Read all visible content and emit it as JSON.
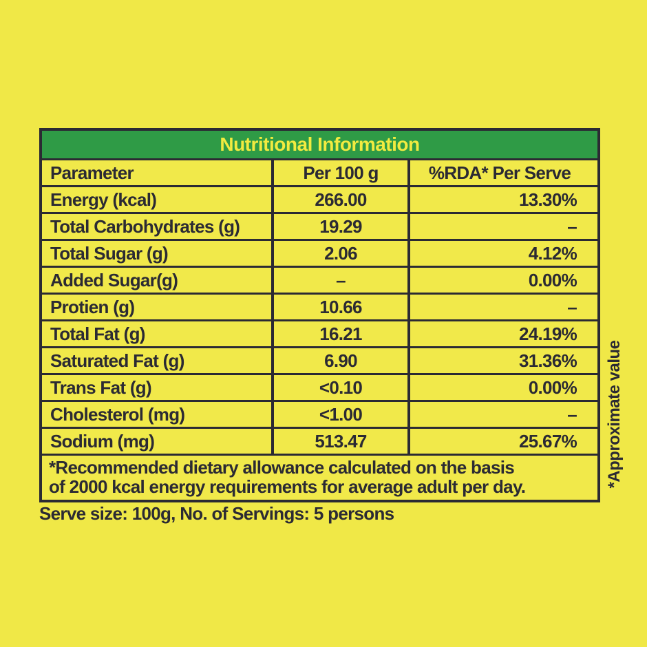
{
  "title": "Nutritional Information",
  "table": {
    "headers": [
      "Parameter",
      "Per 100 g",
      "%RDA* Per Serve"
    ],
    "rows": [
      {
        "param": "Energy (kcal)",
        "per100g": "266.00",
        "rda": "13.30%"
      },
      {
        "param": "Total Carbohydrates (g)",
        "per100g": "19.29",
        "rda": "–"
      },
      {
        "param": "Total Sugar (g)",
        "per100g": "2.06",
        "rda": "4.12%"
      },
      {
        "param": "Added Sugar(g)",
        "per100g": "–",
        "rda": "0.00%"
      },
      {
        "param": "Protien (g)",
        "per100g": "10.66",
        "rda": "–"
      },
      {
        "param": "Total Fat (g)",
        "per100g": "16.21",
        "rda": "24.19%"
      },
      {
        "param": "Saturated Fat (g)",
        "per100g": "6.90",
        "rda": "31.36%"
      },
      {
        "param": "Trans Fat (g)",
        "per100g": "<0.10",
        "rda": "0.00%"
      },
      {
        "param": "Cholesterol (mg)",
        "per100g": "<1.00",
        "rda": "–"
      },
      {
        "param": "Sodium (mg)",
        "per100g": "513.47",
        "rda": "25.67%"
      }
    ],
    "footnote_line1": "*Recommended dietary allowance calculated on the basis",
    "footnote_line2": "of 2000 kcal energy requirements for average adult per day."
  },
  "serve_info": "Serve size: 100g, No. of Servings: 5 persons",
  "side_note": "*Approximate value",
  "colors": {
    "background": "#F0E847",
    "table_cell": "#F1E94A",
    "header_green": "#2F9B46",
    "title_text": "#F2EB40",
    "dark_text_border": "#2B2A33"
  }
}
